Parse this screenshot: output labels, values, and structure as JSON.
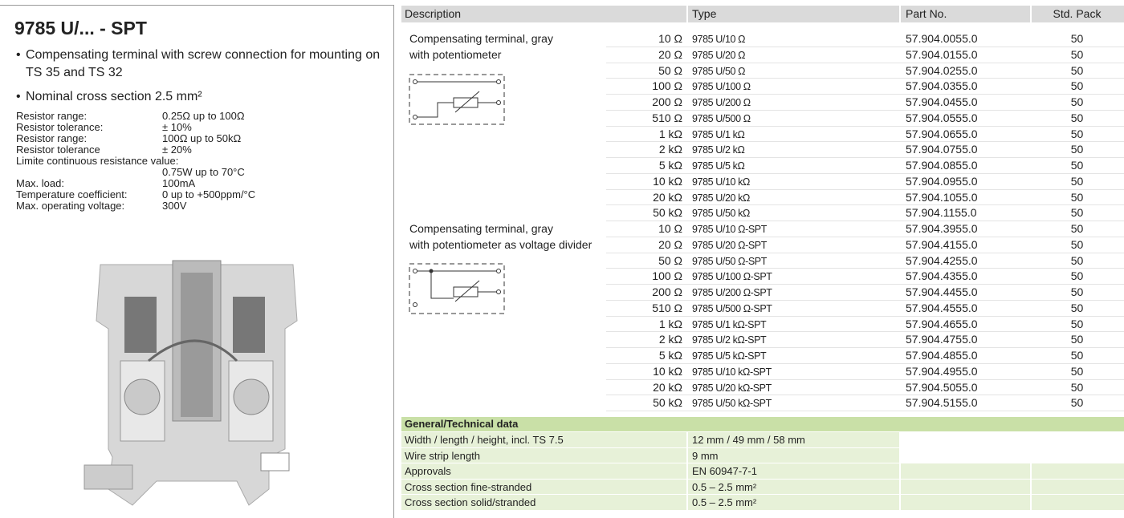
{
  "header": {
    "title": "9785 U/... - SPT"
  },
  "features": [
    "Compensating terminal with screw connection for mounting on TS 35 and TS 32",
    "Nominal cross section 2.5 mm²"
  ],
  "specs": [
    {
      "label": "Resistor range:",
      "value": "0.25Ω up to 100Ω"
    },
    {
      "label": "Resistor tolerance:",
      "value": "± 10%"
    },
    {
      "label": "Resistor range:",
      "value": "100Ω up to 50kΩ"
    },
    {
      "label": "Resistor tolerance",
      "value": "± 20%"
    },
    {
      "label": "Limite continuous resistance value:",
      "value": "0.75W up to 70°C"
    },
    {
      "label": "Max. load:",
      "value": "100mA"
    },
    {
      "label": "Temperature coefficient:",
      "value": "0 up to +500ppm/°C"
    },
    {
      "label": "Max. operating voltage:",
      "value": "300V"
    }
  ],
  "table": {
    "columns": [
      "Description",
      "Type",
      "Part No.",
      "Std. Pack"
    ],
    "groups": [
      {
        "description": [
          "Compensating terminal, gray",
          "with potentiometer"
        ],
        "rows": [
          [
            "10 Ω",
            "9785 U/10 Ω",
            "57.904.0055.0",
            "50"
          ],
          [
            "20 Ω",
            "9785 U/20 Ω",
            "57.904.0155.0",
            "50"
          ],
          [
            "50 Ω",
            "9785 U/50 Ω",
            "57.904.0255.0",
            "50"
          ],
          [
            "100 Ω",
            "9785 U/100 Ω",
            "57.904.0355.0",
            "50"
          ],
          [
            "200 Ω",
            "9785 U/200 Ω",
            "57.904.0455.0",
            "50"
          ],
          [
            "510 Ω",
            "9785 U/500 Ω",
            "57.904.0555.0",
            "50"
          ],
          [
            "1 kΩ",
            "9785 U/1 kΩ",
            "57.904.0655.0",
            "50"
          ],
          [
            "2 kΩ",
            "9785 U/2 kΩ",
            "57.904.0755.0",
            "50"
          ],
          [
            "5 kΩ",
            "9785 U/5 kΩ",
            "57.904.0855.0",
            "50"
          ],
          [
            "10 kΩ",
            "9785 U/10 kΩ",
            "57.904.0955.0",
            "50"
          ],
          [
            "20 kΩ",
            "9785 U/20 kΩ",
            "57.904.1055.0",
            "50"
          ],
          [
            "50 kΩ",
            "9785 U/50 kΩ",
            "57.904.1155.0",
            "50"
          ]
        ]
      },
      {
        "description": [
          "Compensating terminal, gray",
          "with potentiometer as voltage divider"
        ],
        "rows": [
          [
            "10 Ω",
            "9785 U/10 Ω-SPT",
            "57.904.3955.0",
            "50"
          ],
          [
            "20 Ω",
            "9785 U/20 Ω-SPT",
            "57.904.4155.0",
            "50"
          ],
          [
            "50 Ω",
            "9785 U/50 Ω-SPT",
            "57.904.4255.0",
            "50"
          ],
          [
            "100 Ω",
            "9785 U/100 Ω-SPT",
            "57.904.4355.0",
            "50"
          ],
          [
            "200 Ω",
            "9785 U/200 Ω-SPT",
            "57.904.4455.0",
            "50"
          ],
          [
            "510 Ω",
            "9785 U/500 Ω-SPT",
            "57.904.4555.0",
            "50"
          ],
          [
            "1 kΩ",
            "9785 U/1 kΩ-SPT",
            "57.904.4655.0",
            "50"
          ],
          [
            "2 kΩ",
            "9785 U/2 kΩ-SPT",
            "57.904.4755.0",
            "50"
          ],
          [
            "5 kΩ",
            "9785 U/5 kΩ-SPT",
            "57.904.4855.0",
            "50"
          ],
          [
            "10 kΩ",
            "9785 U/10 kΩ-SPT",
            "57.904.4955.0",
            "50"
          ],
          [
            "20 kΩ",
            "9785 U/20 kΩ-SPT",
            "57.904.5055.0",
            "50"
          ],
          [
            "50 kΩ",
            "9785 U/50 kΩ-SPT",
            "57.904.5155.0",
            "50"
          ]
        ]
      }
    ]
  },
  "technical": {
    "title": "General/Technical data",
    "rows": [
      [
        "Width / length / height, incl. TS 7.5",
        "12 mm / 49 mm / 58 mm"
      ],
      [
        "Wire strip length",
        "9 mm"
      ],
      [
        "Approvals",
        "EN 60947-7-1"
      ],
      [
        "Cross section fine-stranded",
        "0.5 – 2.5 mm²"
      ],
      [
        "Cross section solid/stranded",
        "0.5 – 2.5 mm²"
      ]
    ]
  }
}
